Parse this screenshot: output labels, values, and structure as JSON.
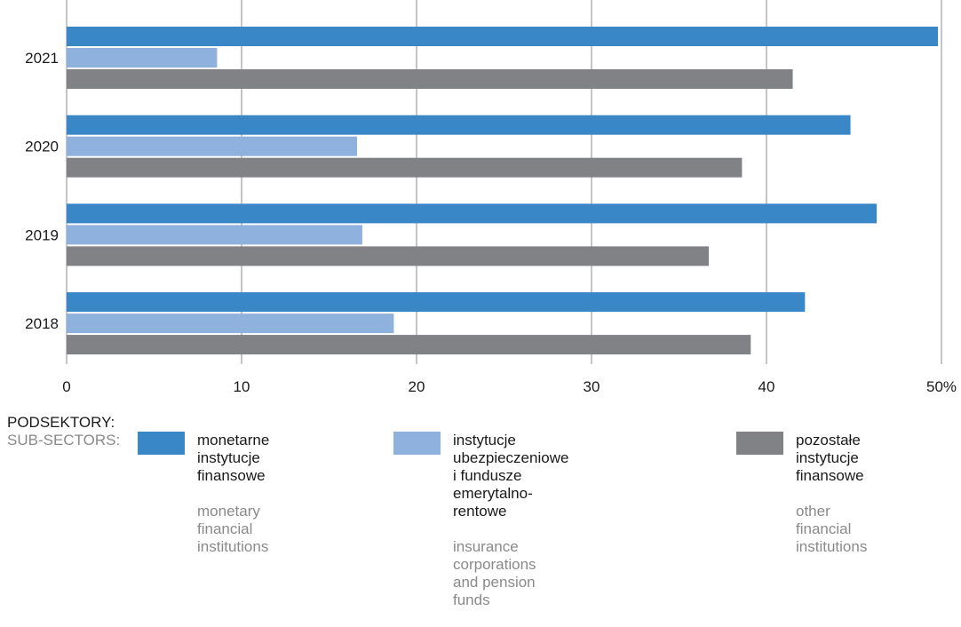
{
  "chart_data": {
    "type": "bar",
    "orientation": "horizontal",
    "categories": [
      "2021",
      "2020",
      "2019",
      "2018"
    ],
    "x_ticks": [
      "0",
      "10",
      "20",
      "30",
      "40",
      "50%"
    ],
    "xlim": [
      0,
      50
    ],
    "grid": true,
    "series": [
      {
        "name": "monetarne instytucje finansowe",
        "color": "#3a87c8",
        "values": [
          49.8,
          44.8,
          46.3,
          42.2
        ]
      },
      {
        "name": "instytucje ubezpieczeniowe i fundusze emerytalno-rentowe",
        "color": "#8fb1dd",
        "values": [
          8.6,
          16.6,
          16.9,
          18.7
        ]
      },
      {
        "name": "pozostałe instytucje finansowe",
        "color": "#808285",
        "values": [
          41.5,
          38.6,
          36.7,
          39.1
        ]
      }
    ]
  },
  "legend": {
    "heading_pl": "PODSEKTORY:",
    "heading_en": "SUB-SECTORS:",
    "items": [
      {
        "pl": "monetarne\ninstytucje finansowe",
        "en": "monetary financial\ninstitutions",
        "color": "#3a87c8"
      },
      {
        "pl": "instytucje ubezpieczeniowe\ni fundusze emerytalno-rentowe",
        "en": "insurance corporations\nand pension funds",
        "color": "#8fb1dd"
      },
      {
        "pl": "pozostałe instytucje\nfinansowe",
        "en": "other financial\ninstitutions",
        "color": "#808285"
      }
    ]
  }
}
